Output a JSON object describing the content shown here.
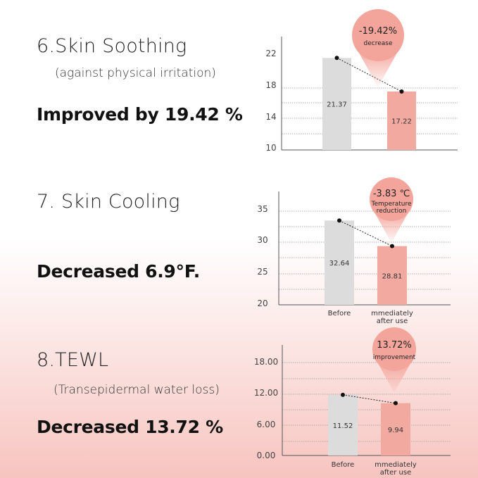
{
  "sections": [
    {
      "title": "6.Skin Soothing",
      "subtitle": "(against physical irritation)",
      "claim": "Improved by 19.42 %"
    },
    {
      "title": "7. Skin Cooling",
      "subtitle": "",
      "claim": "Decreased 6.9°F."
    },
    {
      "title": "8.TEWL",
      "subtitle": "(Transepidermal water loss)",
      "claim": "Decreased 13.72 %"
    }
  ],
  "colors": {
    "before_bar": "#dcdcdc",
    "after_bar": "#f2a9a0",
    "badge": "#f4a59b",
    "axis": "#555555",
    "grid": "#999999"
  },
  "chart_data": [
    {
      "type": "bar",
      "categories": [
        "",
        ""
      ],
      "values": [
        21.37,
        17.22
      ],
      "value_labels": [
        "21.37",
        "17.22"
      ],
      "yticks": [
        "22",
        "18",
        "14",
        "10"
      ],
      "ytick_values": [
        22,
        18,
        14,
        10
      ],
      "ylim": [
        10,
        24
      ],
      "badge_lines": [
        "-19.42%",
        "decrease"
      ],
      "grid": true
    },
    {
      "type": "bar",
      "categories": [
        "Before",
        "mmediately after use"
      ],
      "category_lines": [
        [
          "Before"
        ],
        [
          "mmediately",
          "after use"
        ]
      ],
      "values": [
        32.64,
        28.81
      ],
      "value_labels": [
        "32.64",
        "28.81"
      ],
      "yticks": [
        "35",
        "30",
        "25",
        "20"
      ],
      "ytick_values": [
        35,
        30,
        25,
        20
      ],
      "ylim": [
        20,
        37
      ],
      "badge_lines": [
        "-3.83 ℃",
        "Temperature",
        "reduction"
      ],
      "grid": true
    },
    {
      "type": "bar",
      "categories": [
        "Before",
        "mmediately after use"
      ],
      "category_lines": [
        [
          "Before"
        ],
        [
          "mmediately",
          "after use"
        ]
      ],
      "values": [
        11.52,
        9.94
      ],
      "value_labels": [
        "11.52",
        "9.94"
      ],
      "yticks": [
        "18.00",
        "12.00",
        "6.00",
        "0.00"
      ],
      "ytick_values": [
        18,
        12,
        6,
        0
      ],
      "ylim": [
        0,
        21
      ],
      "badge_lines": [
        "13.72%",
        "improvement"
      ],
      "grid": true
    }
  ]
}
